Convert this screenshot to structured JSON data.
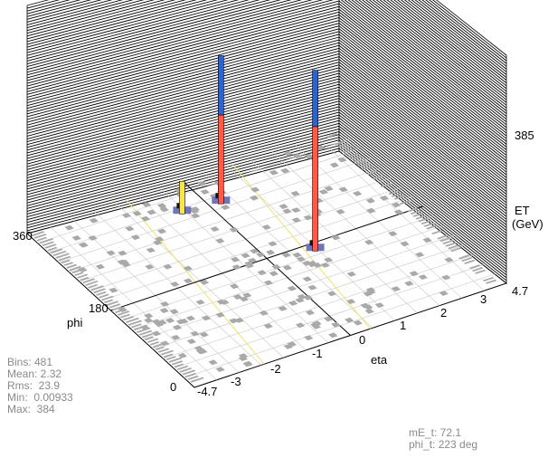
{
  "chart_data": {
    "type": "lego",
    "xlabel": "eta",
    "ylabel": "phi",
    "zlabel": "ET\n(GeV)",
    "x_ticks": [
      "-4.7",
      "-3",
      "-2",
      "-1",
      "0",
      "1",
      "2",
      "3",
      "4.7"
    ],
    "y_ticks": [
      "0",
      "180",
      "360"
    ],
    "z_tick": "385",
    "xlim": [
      -4.7,
      4.7
    ],
    "ylim": [
      0,
      360
    ],
    "zlim": [
      0,
      385
    ],
    "towers": [
      {
        "eta": 0.3,
        "phi": 300,
        "segments": [
          {
            "color": "#ff5b4a",
            "et": 150
          },
          {
            "color": "#2f63c9",
            "et": 100
          }
        ]
      },
      {
        "eta": 1.25,
        "phi": 165,
        "segments": [
          {
            "color": "#ff5b4a",
            "et": 210
          },
          {
            "color": "#2f63c9",
            "et": 95
          }
        ]
      },
      {
        "eta": -0.8,
        "phi": 305,
        "segments": [
          {
            "color": "#ffe63a",
            "et": 55
          }
        ]
      }
    ],
    "colors": {
      "em": "#ff5b4a",
      "had": "#2f63c9",
      "other": "#ffe63a"
    }
  },
  "stats": {
    "bins": "Bins: 481",
    "mean": "Mean: 2.32",
    "rms": "Rms:  23.9",
    "min": "Min:  0.00933",
    "max": "Max:  384"
  },
  "met": {
    "met_value": "mE_t: 72.1",
    "met_phi": "phi_t: 223 deg"
  }
}
